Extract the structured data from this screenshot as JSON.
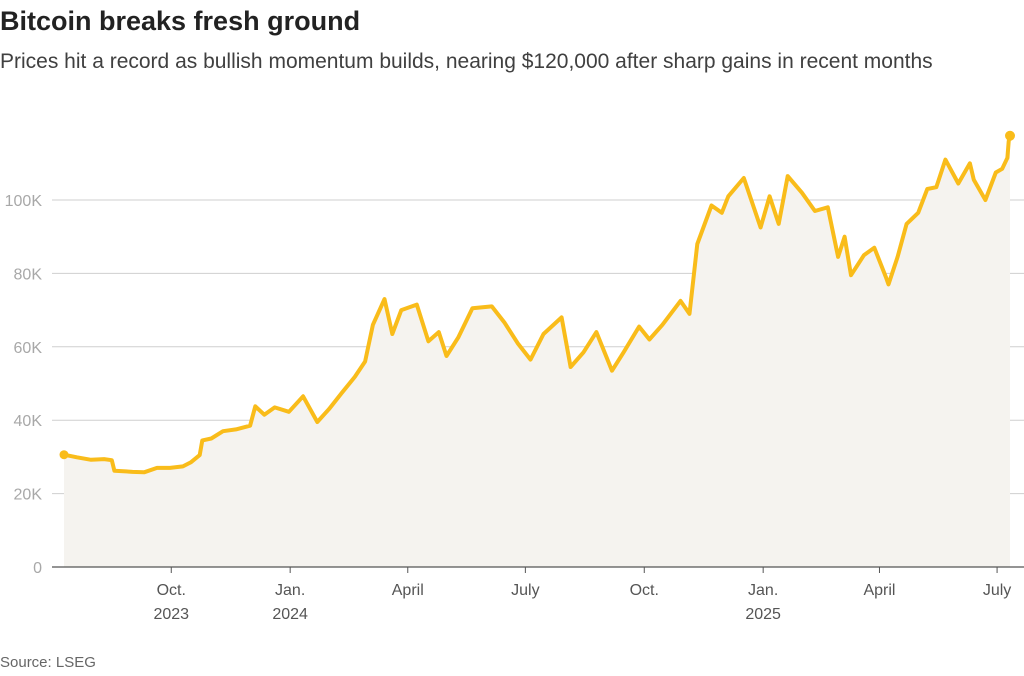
{
  "header": {
    "title": "Bitcoin breaks fresh ground",
    "subtitle": "Prices hit a record as bullish momentum builds, nearing $120,000 after sharp gains in recent months"
  },
  "footer": {
    "source": "Source: LSEG"
  },
  "colors": {
    "line": "#f9bc1a",
    "area": "#f5f3ef",
    "grid": "#cfcfcf"
  },
  "chart_data": {
    "type": "area",
    "title": "Bitcoin breaks fresh ground",
    "ylabel": "",
    "xlabel": "",
    "ylim": [
      0,
      120000
    ],
    "grid": true,
    "y_ticks": [
      {
        "value": 0,
        "label": "0"
      },
      {
        "value": 20000,
        "label": "20K"
      },
      {
        "value": 40000,
        "label": "40K"
      },
      {
        "value": 60000,
        "label": "60K"
      },
      {
        "value": 80000,
        "label": "80K"
      },
      {
        "value": 100000,
        "label": "100K"
      }
    ],
    "x_ticks": [
      {
        "date": "2023-10-01",
        "label": "Oct.",
        "year": "2023"
      },
      {
        "date": "2024-01-01",
        "label": "Jan.",
        "year": "2024"
      },
      {
        "date": "2024-04-01",
        "label": "April",
        "year": ""
      },
      {
        "date": "2024-07-01",
        "label": "July",
        "year": ""
      },
      {
        "date": "2024-10-01",
        "label": "Oct.",
        "year": ""
      },
      {
        "date": "2025-01-01",
        "label": "Jan.",
        "year": "2025"
      },
      {
        "date": "2025-04-01",
        "label": "April",
        "year": ""
      },
      {
        "date": "2025-07-01",
        "label": "July",
        "year": ""
      }
    ],
    "series": [
      {
        "points": [
          [
            "2023-07-10",
            30600
          ],
          [
            "2023-07-20",
            29900
          ],
          [
            "2023-07-31",
            29200
          ],
          [
            "2023-08-10",
            29400
          ],
          [
            "2023-08-16",
            29100
          ],
          [
            "2023-08-18",
            26200
          ],
          [
            "2023-08-25",
            26100
          ],
          [
            "2023-09-01",
            25900
          ],
          [
            "2023-09-10",
            25800
          ],
          [
            "2023-09-20",
            27000
          ],
          [
            "2023-09-30",
            27000
          ],
          [
            "2023-10-10",
            27400
          ],
          [
            "2023-10-16",
            28500
          ],
          [
            "2023-10-23",
            30500
          ],
          [
            "2023-10-25",
            34500
          ],
          [
            "2023-11-01",
            35000
          ],
          [
            "2023-11-10",
            37000
          ],
          [
            "2023-11-20",
            37500
          ],
          [
            "2023-12-01",
            38500
          ],
          [
            "2023-12-05",
            43800
          ],
          [
            "2023-12-12",
            41500
          ],
          [
            "2023-12-20",
            43500
          ],
          [
            "2023-12-31",
            42300
          ],
          [
            "2024-01-11",
            46500
          ],
          [
            "2024-01-22",
            39500
          ],
          [
            "2024-01-31",
            43000
          ],
          [
            "2024-02-10",
            47500
          ],
          [
            "2024-02-20",
            51800
          ],
          [
            "2024-02-28",
            56000
          ],
          [
            "2024-03-05",
            66000
          ],
          [
            "2024-03-14",
            73000
          ],
          [
            "2024-03-20",
            63500
          ],
          [
            "2024-03-27",
            70000
          ],
          [
            "2024-04-08",
            71500
          ],
          [
            "2024-04-17",
            61500
          ],
          [
            "2024-04-25",
            64000
          ],
          [
            "2024-05-01",
            57500
          ],
          [
            "2024-05-10",
            62500
          ],
          [
            "2024-05-21",
            70500
          ],
          [
            "2024-06-05",
            71000
          ],
          [
            "2024-06-15",
            66500
          ],
          [
            "2024-06-25",
            61000
          ],
          [
            "2024-07-05",
            56500
          ],
          [
            "2024-07-15",
            63500
          ],
          [
            "2024-07-29",
            68000
          ],
          [
            "2024-08-05",
            54500
          ],
          [
            "2024-08-15",
            58500
          ],
          [
            "2024-08-25",
            64000
          ],
          [
            "2024-09-06",
            53500
          ],
          [
            "2024-09-15",
            58500
          ],
          [
            "2024-09-27",
            65500
          ],
          [
            "2024-10-05",
            62000
          ],
          [
            "2024-10-15",
            66000
          ],
          [
            "2024-10-29",
            72500
          ],
          [
            "2024-11-05",
            69000
          ],
          [
            "2024-11-11",
            88000
          ],
          [
            "2024-11-22",
            98500
          ],
          [
            "2024-11-30",
            96500
          ],
          [
            "2024-12-05",
            101000
          ],
          [
            "2024-12-17",
            106000
          ],
          [
            "2024-12-30",
            92500
          ],
          [
            "2025-01-06",
            101000
          ],
          [
            "2025-01-13",
            93500
          ],
          [
            "2025-01-20",
            106500
          ],
          [
            "2025-01-31",
            102000
          ],
          [
            "2025-02-10",
            97000
          ],
          [
            "2025-02-20",
            98000
          ],
          [
            "2025-02-28",
            84500
          ],
          [
            "2025-03-05",
            90000
          ],
          [
            "2025-03-10",
            79500
          ],
          [
            "2025-03-20",
            85000
          ],
          [
            "2025-03-28",
            87000
          ],
          [
            "2025-04-06",
            79000
          ],
          [
            "2025-04-08",
            77000
          ],
          [
            "2025-04-15",
            84500
          ],
          [
            "2025-04-22",
            93500
          ],
          [
            "2025-05-01",
            96500
          ],
          [
            "2025-05-08",
            103000
          ],
          [
            "2025-05-15",
            103500
          ],
          [
            "2025-05-22",
            111000
          ],
          [
            "2025-06-01",
            104500
          ],
          [
            "2025-06-10",
            110000
          ],
          [
            "2025-06-13",
            105500
          ],
          [
            "2025-06-22",
            100000
          ],
          [
            "2025-06-30",
            107500
          ],
          [
            "2025-07-05",
            108500
          ],
          [
            "2025-07-09",
            111500
          ],
          [
            "2025-07-10",
            116000
          ],
          [
            "2025-07-11",
            117500
          ]
        ]
      }
    ]
  }
}
